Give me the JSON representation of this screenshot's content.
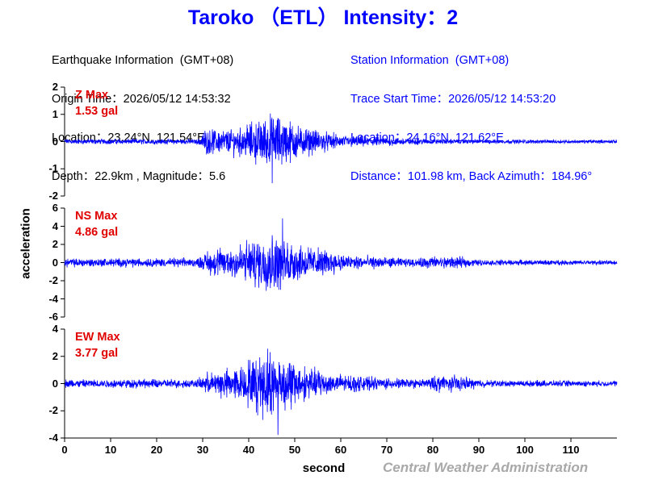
{
  "title": "Taroko （ETL） Intensity：2",
  "earthquake": {
    "heading": "Earthquake Information  (GMT+08)",
    "origin_time": "Origin Time：2026/05/12 14:53:32",
    "location": "Location：23.24°N, 121.54°E",
    "depth_magnitude": "Depth：22.9km , Magnitude：5.6"
  },
  "station": {
    "heading": "Station Information  (GMT+08)",
    "trace_start": "Trace Start Time：2026/05/12 14:53:20",
    "location": "Location：24.16°N, 121.62°E",
    "distance": "Distance：101.98 km, Back Azimuth：184.96°"
  },
  "colors": {
    "title": "#0000ff",
    "station": "#0000ff",
    "trace": "#0000ff",
    "max_label": "#e00000",
    "credit": "#a9a9a9"
  },
  "chart_data": {
    "type": "line",
    "xlabel": "second",
    "ylabel": "acceleration",
    "xlim": [
      0,
      120
    ],
    "xticks": [
      "0",
      "10",
      "20",
      "30",
      "40",
      "50",
      "60",
      "70",
      "80",
      "90",
      "100",
      "110"
    ],
    "credit": "Central Weather Administration",
    "panels": [
      {
        "name": "Z",
        "max_name": "Z Max",
        "max_value": "1.53 gal",
        "ylim": [
          -2,
          2
        ],
        "yticks": [
          "2",
          "1",
          "0",
          "-1",
          "-2"
        ],
        "peak": 1.53,
        "envelope": [
          [
            0,
            0.12
          ],
          [
            29,
            0.12
          ],
          [
            30.5,
            0.55
          ],
          [
            38,
            0.65
          ],
          [
            46,
            1.35
          ],
          [
            52,
            0.65
          ],
          [
            60,
            0.3
          ],
          [
            70,
            0.2
          ],
          [
            80,
            0.12
          ],
          [
            90,
            0.1
          ],
          [
            120,
            0.08
          ]
        ]
      },
      {
        "name": "NS",
        "max_name": "NS Max",
        "max_value": "4.86 gal",
        "ylim": [
          -6,
          6
        ],
        "yticks": [
          "6",
          "4",
          "2",
          "0",
          "-2",
          "-4",
          "-6"
        ],
        "peak": 4.86,
        "envelope": [
          [
            0,
            0.6
          ],
          [
            29,
            0.6
          ],
          [
            31,
            1.6
          ],
          [
            38,
            2.5
          ],
          [
            45,
            4.4
          ],
          [
            52,
            2.4
          ],
          [
            60,
            1.2
          ],
          [
            70,
            0.7
          ],
          [
            77,
            0.5
          ],
          [
            78,
            0.9
          ],
          [
            86,
            0.75
          ],
          [
            90,
            0.4
          ],
          [
            120,
            0.3
          ]
        ]
      },
      {
        "name": "EW",
        "max_name": "EW Max",
        "max_value": "3.77 gal",
        "ylim": [
          -4,
          4
        ],
        "yticks": [
          "4",
          "2",
          "0",
          "-2",
          "-4"
        ],
        "peak": 3.77,
        "envelope": [
          [
            0,
            0.4
          ],
          [
            29,
            0.4
          ],
          [
            31,
            1.0
          ],
          [
            38,
            1.6
          ],
          [
            45,
            3.4
          ],
          [
            52,
            1.6
          ],
          [
            60,
            0.8
          ],
          [
            70,
            0.5
          ],
          [
            78,
            0.4
          ],
          [
            82,
            0.9
          ],
          [
            87,
            0.55
          ],
          [
            92,
            0.3
          ],
          [
            120,
            0.25
          ]
        ]
      }
    ]
  }
}
